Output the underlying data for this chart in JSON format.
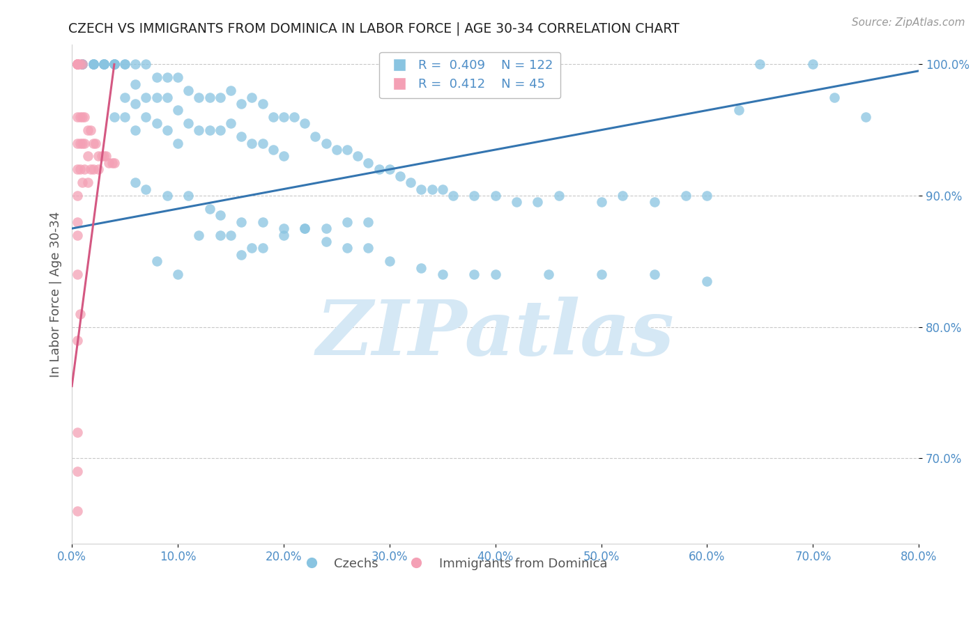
{
  "title": "CZECH VS IMMIGRANTS FROM DOMINICA IN LABOR FORCE | AGE 30-34 CORRELATION CHART",
  "source": "Source: ZipAtlas.com",
  "ylabel": "In Labor Force | Age 30-34",
  "xlim": [
    0.0,
    0.8
  ],
  "ylim": [
    0.635,
    1.015
  ],
  "yticks": [
    0.7,
    0.8,
    0.9,
    1.0
  ],
  "xticks": [
    0.0,
    0.1,
    0.2,
    0.3,
    0.4,
    0.5,
    0.6,
    0.7,
    0.8
  ],
  "blue_color": "#89c4e1",
  "pink_color": "#f4a0b5",
  "blue_line_color": "#3475b0",
  "pink_line_color": "#d45882",
  "legend_blue_R": "0.409",
  "legend_blue_N": "122",
  "legend_pink_R": "0.412",
  "legend_pink_N": "45",
  "watermark_color": "#d5e8f5",
  "title_color": "#222222",
  "tick_label_color": "#4e8ec7",
  "legend_text_color": "#4e8ec7",
  "blue_scatter_x": [
    0.01,
    0.01,
    0.01,
    0.02,
    0.02,
    0.02,
    0.02,
    0.03,
    0.03,
    0.03,
    0.03,
    0.04,
    0.04,
    0.04,
    0.04,
    0.04,
    0.05,
    0.05,
    0.05,
    0.05,
    0.06,
    0.06,
    0.06,
    0.06,
    0.07,
    0.07,
    0.07,
    0.08,
    0.08,
    0.08,
    0.09,
    0.09,
    0.09,
    0.1,
    0.1,
    0.1,
    0.11,
    0.11,
    0.12,
    0.12,
    0.13,
    0.13,
    0.14,
    0.14,
    0.15,
    0.15,
    0.16,
    0.16,
    0.17,
    0.17,
    0.18,
    0.18,
    0.19,
    0.19,
    0.2,
    0.2,
    0.21,
    0.22,
    0.23,
    0.24,
    0.25,
    0.26,
    0.27,
    0.28,
    0.29,
    0.3,
    0.31,
    0.32,
    0.33,
    0.34,
    0.35,
    0.36,
    0.38,
    0.4,
    0.42,
    0.44,
    0.46,
    0.5,
    0.52,
    0.55,
    0.58,
    0.6,
    0.63,
    0.65,
    0.7,
    0.72,
    0.75,
    0.08,
    0.1,
    0.12,
    0.14,
    0.15,
    0.16,
    0.17,
    0.18,
    0.2,
    0.22,
    0.24,
    0.26,
    0.28,
    0.06,
    0.07,
    0.09,
    0.11,
    0.13,
    0.14,
    0.16,
    0.18,
    0.2,
    0.22,
    0.24,
    0.26,
    0.28,
    0.3,
    0.33,
    0.35,
    0.38,
    0.4,
    0.45,
    0.5,
    0.55,
    0.6
  ],
  "blue_scatter_y": [
    1.0,
    1.0,
    1.0,
    1.0,
    1.0,
    1.0,
    1.0,
    1.0,
    1.0,
    1.0,
    1.0,
    1.0,
    1.0,
    1.0,
    1.0,
    0.96,
    1.0,
    1.0,
    0.975,
    0.96,
    1.0,
    0.985,
    0.97,
    0.95,
    1.0,
    0.975,
    0.96,
    0.99,
    0.975,
    0.955,
    0.99,
    0.975,
    0.95,
    0.99,
    0.965,
    0.94,
    0.98,
    0.955,
    0.975,
    0.95,
    0.975,
    0.95,
    0.975,
    0.95,
    0.98,
    0.955,
    0.97,
    0.945,
    0.975,
    0.94,
    0.97,
    0.94,
    0.96,
    0.935,
    0.96,
    0.93,
    0.96,
    0.955,
    0.945,
    0.94,
    0.935,
    0.935,
    0.93,
    0.925,
    0.92,
    0.92,
    0.915,
    0.91,
    0.905,
    0.905,
    0.905,
    0.9,
    0.9,
    0.9,
    0.895,
    0.895,
    0.9,
    0.895,
    0.9,
    0.895,
    0.9,
    0.9,
    0.965,
    1.0,
    1.0,
    0.975,
    0.96,
    0.85,
    0.84,
    0.87,
    0.87,
    0.87,
    0.855,
    0.86,
    0.86,
    0.87,
    0.875,
    0.875,
    0.88,
    0.88,
    0.91,
    0.905,
    0.9,
    0.9,
    0.89,
    0.885,
    0.88,
    0.88,
    0.875,
    0.875,
    0.865,
    0.86,
    0.86,
    0.85,
    0.845,
    0.84,
    0.84,
    0.84,
    0.84,
    0.84,
    0.84,
    0.835
  ],
  "pink_scatter_x": [
    0.005,
    0.005,
    0.005,
    0.005,
    0.005,
    0.005,
    0.005,
    0.005,
    0.005,
    0.005,
    0.005,
    0.005,
    0.008,
    0.008,
    0.008,
    0.008,
    0.01,
    0.01,
    0.01,
    0.01,
    0.012,
    0.012,
    0.012,
    0.015,
    0.015,
    0.015,
    0.018,
    0.018,
    0.02,
    0.02,
    0.022,
    0.025,
    0.025,
    0.028,
    0.03,
    0.032,
    0.035,
    0.038,
    0.04,
    0.005,
    0.005,
    0.008,
    0.005,
    0.005,
    0.005
  ],
  "pink_scatter_y": [
    1.0,
    1.0,
    1.0,
    1.0,
    1.0,
    1.0,
    0.96,
    0.94,
    0.92,
    0.9,
    0.88,
    0.87,
    1.0,
    0.96,
    0.94,
    0.92,
    1.0,
    0.96,
    0.94,
    0.91,
    0.96,
    0.94,
    0.92,
    0.95,
    0.93,
    0.91,
    0.95,
    0.92,
    0.94,
    0.92,
    0.94,
    0.93,
    0.92,
    0.93,
    0.93,
    0.93,
    0.925,
    0.925,
    0.925,
    0.84,
    0.79,
    0.81,
    0.72,
    0.69,
    0.66
  ],
  "blue_trend_x": [
    0.0,
    0.8
  ],
  "blue_trend_y": [
    0.875,
    0.995
  ],
  "pink_trend_x": [
    0.0,
    0.04
  ],
  "pink_trend_y": [
    0.755,
    1.0
  ]
}
